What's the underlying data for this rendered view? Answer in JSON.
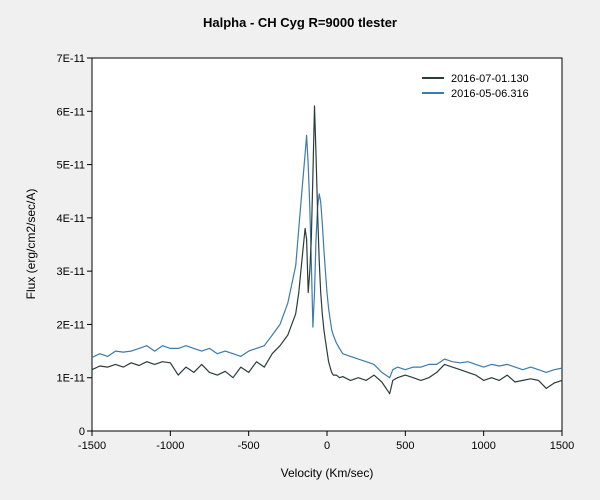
{
  "chart_data": {
    "type": "line",
    "title": "Halpha - CH Cyg  R=9000   tlester",
    "xlabel": "Velocity (Km/sec)",
    "ylabel": "Flux (erg/cm2/sec/A)",
    "xlim": [
      -1500,
      1500
    ],
    "ylim": [
      0,
      7e-11
    ],
    "x_ticks": [
      -1500,
      -1000,
      -500,
      0,
      500,
      1000,
      1500
    ],
    "x_tick_labels": [
      "-1500",
      "-1000",
      "-500",
      "0",
      "500",
      "1000",
      "1500"
    ],
    "y_ticks": [
      0,
      1e-11,
      2e-11,
      3e-11,
      4e-11,
      5e-11,
      6e-11,
      7e-11
    ],
    "y_tick_labels": [
      "0",
      "1E-11",
      "2E-11",
      "3E-11",
      "4E-11",
      "5E-11",
      "6E-11",
      "7E-11"
    ],
    "legend_position": "top-right",
    "series": [
      {
        "name": "2016-07-01.130",
        "color": "#2a3d3a",
        "x": [
          -1500,
          -1450,
          -1400,
          -1350,
          -1300,
          -1250,
          -1200,
          -1150,
          -1100,
          -1050,
          -1000,
          -950,
          -900,
          -850,
          -800,
          -750,
          -700,
          -650,
          -600,
          -550,
          -500,
          -450,
          -400,
          -350,
          -300,
          -250,
          -200,
          -180,
          -160,
          -140,
          -130,
          -120,
          -110,
          -100,
          -90,
          -80,
          -70,
          -60,
          -50,
          -40,
          -30,
          -20,
          -10,
          0,
          10,
          20,
          30,
          40,
          60,
          80,
          100,
          150,
          200,
          250,
          300,
          350,
          400,
          420,
          450,
          500,
          550,
          600,
          650,
          700,
          750,
          800,
          850,
          900,
          950,
          1000,
          1050,
          1100,
          1150,
          1200,
          1250,
          1300,
          1350,
          1400,
          1450,
          1500
        ],
        "y": [
          1.15e-11,
          1.22e-11,
          1.2e-11,
          1.25e-11,
          1.2e-11,
          1.28e-11,
          1.23e-11,
          1.3e-11,
          1.25e-11,
          1.3e-11,
          1.28e-11,
          1.05e-11,
          1.2e-11,
          1.1e-11,
          1.25e-11,
          1.1e-11,
          1.05e-11,
          1.12e-11,
          1e-11,
          1.2e-11,
          1.1e-11,
          1.3e-11,
          1.2e-11,
          1.45e-11,
          1.6e-11,
          1.8e-11,
          2.2e-11,
          2.6e-11,
          3.2e-11,
          3.8e-11,
          3.6e-11,
          2.6e-11,
          3e-11,
          3.6e-11,
          4.8e-11,
          6.1e-11,
          5.2e-11,
          4.1e-11,
          3.2e-11,
          2.6e-11,
          2.2e-11,
          1.9e-11,
          1.7e-11,
          1.5e-11,
          1.3e-11,
          1.2e-11,
          1.1e-11,
          1.05e-11,
          1.05e-11,
          1e-11,
          1.02e-11,
          9.5e-12,
          1e-11,
          9.5e-12,
          1.05e-11,
          9.2e-12,
          7e-12,
          9.5e-12,
          1e-11,
          1.05e-11,
          1e-11,
          9.5e-12,
          1e-11,
          1.1e-11,
          1.25e-11,
          1.2e-11,
          1.15e-11,
          1.1e-11,
          1.05e-11,
          9.5e-12,
          1e-11,
          9.5e-12,
          1.05e-11,
          9.2e-12,
          9.5e-12,
          9.8e-12,
          9.5e-12,
          8e-12,
          9e-12,
          9.5e-12
        ]
      },
      {
        "name": "2016-05-06.316",
        "color": "#3b7bad",
        "x": [
          -1500,
          -1450,
          -1400,
          -1350,
          -1300,
          -1250,
          -1200,
          -1150,
          -1100,
          -1050,
          -1000,
          -950,
          -900,
          -850,
          -800,
          -750,
          -700,
          -650,
          -600,
          -550,
          -500,
          -450,
          -400,
          -350,
          -300,
          -250,
          -200,
          -180,
          -160,
          -140,
          -130,
          -120,
          -110,
          -100,
          -90,
          -80,
          -70,
          -60,
          -50,
          -40,
          -30,
          -20,
          -10,
          0,
          10,
          20,
          30,
          40,
          60,
          80,
          100,
          150,
          200,
          250,
          300,
          350,
          400,
          420,
          450,
          500,
          550,
          600,
          650,
          700,
          750,
          800,
          850,
          900,
          950,
          1000,
          1050,
          1100,
          1150,
          1200,
          1250,
          1300,
          1350,
          1400,
          1450,
          1500
        ],
        "y": [
          1.38e-11,
          1.45e-11,
          1.4e-11,
          1.5e-11,
          1.48e-11,
          1.5e-11,
          1.55e-11,
          1.6e-11,
          1.5e-11,
          1.6e-11,
          1.55e-11,
          1.55e-11,
          1.6e-11,
          1.55e-11,
          1.5e-11,
          1.55e-11,
          1.45e-11,
          1.5e-11,
          1.45e-11,
          1.4e-11,
          1.5e-11,
          1.55e-11,
          1.6e-11,
          1.8e-11,
          2e-11,
          2.4e-11,
          3.1e-11,
          3.8e-11,
          4.5e-11,
          5.2e-11,
          5.55e-11,
          5e-11,
          4.2e-11,
          3.2e-11,
          1.95e-11,
          2.6e-11,
          3.6e-11,
          4.2e-11,
          4.45e-11,
          4.3e-11,
          3.9e-11,
          3.4e-11,
          3e-11,
          2.6e-11,
          2.3e-11,
          2.1e-11,
          1.9e-11,
          1.8e-11,
          1.65e-11,
          1.55e-11,
          1.45e-11,
          1.4e-11,
          1.35e-11,
          1.3e-11,
          1.25e-11,
          1.1e-11,
          1e-11,
          1.15e-11,
          1.2e-11,
          1.15e-11,
          1.2e-11,
          1.2e-11,
          1.25e-11,
          1.25e-11,
          1.35e-11,
          1.3e-11,
          1.28e-11,
          1.3e-11,
          1.25e-11,
          1.2e-11,
          1.25e-11,
          1.22e-11,
          1.25e-11,
          1.2e-11,
          1.15e-11,
          1.2e-11,
          1.15e-11,
          1.1e-11,
          1.15e-11,
          1.18e-11
        ]
      }
    ]
  }
}
